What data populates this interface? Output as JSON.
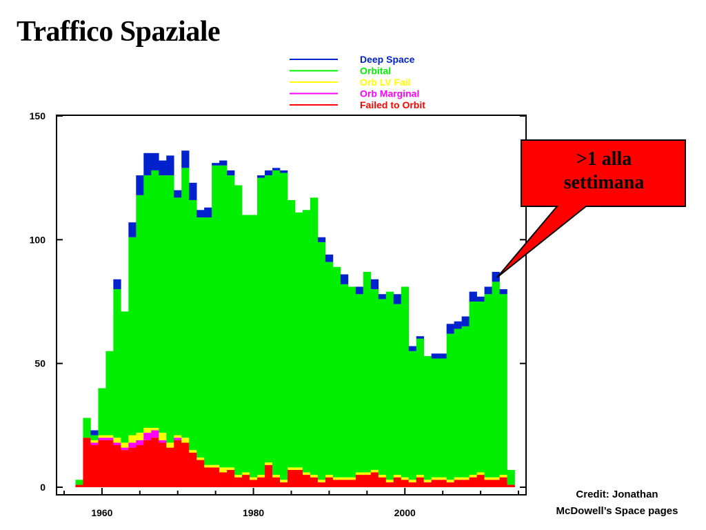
{
  "slide": {
    "title": "Traffico Spaziale",
    "callout_line1": ">1 alla",
    "callout_line2": "settimana",
    "credit_line1": "Credit: Jonathan",
    "credit_line2": "McDowell’s Space pages"
  },
  "chart_data": {
    "type": "bar",
    "stacked": true,
    "xlim": [
      1954,
      2016
    ],
    "ylim": [
      0,
      150
    ],
    "xticks": [
      1960,
      1980,
      2000
    ],
    "yticks": [
      0,
      50,
      100,
      150
    ],
    "legend_position": "top-center",
    "years": [
      1957,
      1958,
      1959,
      1960,
      1961,
      1962,
      1963,
      1964,
      1965,
      1966,
      1967,
      1968,
      1969,
      1970,
      1971,
      1972,
      1973,
      1974,
      1975,
      1976,
      1977,
      1978,
      1979,
      1980,
      1981,
      1982,
      1983,
      1984,
      1985,
      1986,
      1987,
      1988,
      1989,
      1990,
      1991,
      1992,
      1993,
      1994,
      1995,
      1996,
      1997,
      1998,
      1999,
      2000,
      2001,
      2002,
      2003,
      2004,
      2005,
      2006,
      2007,
      2008,
      2009,
      2010,
      2011,
      2012,
      2013,
      2014
    ],
    "series": [
      {
        "name": "Failed to Orbit",
        "color": "#ff0000",
        "values": [
          1,
          20,
          17,
          19,
          19,
          17,
          15,
          16,
          17,
          19,
          20,
          18,
          16,
          19,
          18,
          14,
          11,
          8,
          8,
          6,
          7,
          4,
          5,
          3,
          4,
          9,
          4,
          2,
          7,
          7,
          5,
          4,
          2,
          4,
          3,
          3,
          3,
          5,
          5,
          6,
          4,
          2,
          4,
          3,
          2,
          4,
          2,
          3,
          3,
          2,
          3,
          3,
          4,
          5,
          3,
          3,
          4,
          1
        ]
      },
      {
        "name": "Orb Marginal",
        "color": "#ff00ff",
        "values": [
          0,
          0,
          1,
          1,
          1,
          1,
          1,
          2,
          2,
          3,
          3,
          1,
          0,
          1,
          0,
          0,
          0,
          0,
          0,
          0,
          0,
          0,
          0,
          0,
          0,
          0,
          0,
          0,
          0,
          0,
          0,
          0,
          0,
          0,
          0,
          0,
          0,
          0,
          0,
          0,
          0,
          0,
          0,
          0,
          0,
          0,
          0,
          0,
          0,
          0,
          0,
          0,
          0,
          0,
          0,
          0,
          0,
          0
        ]
      },
      {
        "name": "Orb LV Fail",
        "color": "#ffff00",
        "values": [
          0,
          0,
          1,
          1,
          1,
          2,
          2,
          3,
          3,
          2,
          1,
          3,
          2,
          1,
          2,
          1,
          1,
          1,
          1,
          2,
          1,
          1,
          1,
          1,
          1,
          1,
          1,
          1,
          1,
          1,
          1,
          1,
          1,
          1,
          1,
          1,
          1,
          1,
          1,
          1,
          1,
          1,
          1,
          1,
          1,
          1,
          1,
          1,
          1,
          1,
          1,
          1,
          1,
          1,
          1,
          1,
          1,
          0
        ]
      },
      {
        "name": "Orbital",
        "color": "#00ee00",
        "values": [
          2,
          8,
          2,
          19,
          34,
          60,
          53,
          80,
          96,
          102,
          104,
          104,
          108,
          96,
          109,
          101,
          97,
          100,
          121,
          122,
          118,
          117,
          104,
          106,
          120,
          116,
          123,
          124,
          108,
          103,
          106,
          112,
          96,
          86,
          85,
          78,
          77,
          72,
          81,
          73,
          71,
          76,
          69,
          77,
          52,
          55,
          50,
          48,
          48,
          59,
          60,
          61,
          70,
          69,
          74,
          79,
          73,
          6
        ]
      },
      {
        "name": "Deep Space",
        "color": "#0022cc",
        "values": [
          0,
          0,
          2,
          0,
          0,
          4,
          0,
          6,
          8,
          9,
          7,
          6,
          8,
          3,
          7,
          7,
          3,
          4,
          1,
          2,
          2,
          0,
          0,
          0,
          1,
          2,
          1,
          1,
          0,
          0,
          0,
          0,
          2,
          3,
          0,
          4,
          0,
          3,
          0,
          4,
          2,
          0,
          4,
          0,
          2,
          1,
          0,
          2,
          2,
          4,
          3,
          4,
          4,
          2,
          3,
          4,
          2,
          0
        ]
      }
    ]
  }
}
